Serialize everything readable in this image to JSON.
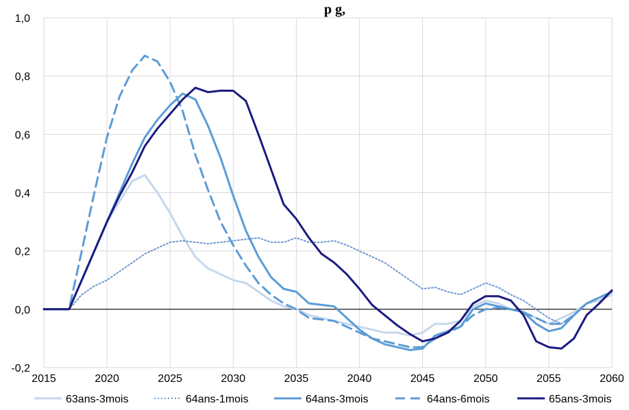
{
  "title_fragment": "p                g,",
  "chart_data": {
    "type": "line",
    "title": "",
    "xlabel": "",
    "ylabel": "",
    "xlim": [
      2015,
      2060
    ],
    "ylim": [
      -0.2,
      1.0
    ],
    "xticks": [
      2015,
      2020,
      2025,
      2030,
      2035,
      2040,
      2045,
      2050,
      2055,
      2060
    ],
    "xtick_labels": [
      "2015",
      "2020",
      "2025",
      "2030",
      "2035",
      "2040",
      "2045",
      "2050",
      "2055",
      "2060"
    ],
    "yticks": [
      -0.2,
      0.0,
      0.2,
      0.4,
      0.6,
      0.8,
      1.0
    ],
    "ytick_labels": [
      "-0,2",
      "0,0",
      "0,2",
      "0,4",
      "0,6",
      "0,8",
      "1,0"
    ],
    "grid": true,
    "legend_position": "bottom",
    "x": [
      2015,
      2016,
      2017,
      2018,
      2019,
      2020,
      2021,
      2022,
      2023,
      2024,
      2025,
      2026,
      2027,
      2028,
      2029,
      2030,
      2031,
      2032,
      2033,
      2034,
      2035,
      2036,
      2037,
      2038,
      2039,
      2040,
      2041,
      2042,
      2043,
      2044,
      2045,
      2046,
      2047,
      2048,
      2049,
      2050,
      2051,
      2052,
      2053,
      2054,
      2055,
      2056,
      2057,
      2058,
      2059,
      2060
    ],
    "series": [
      {
        "name": "63ans-3mois",
        "color": "#c5d7ee",
        "style": "solid",
        "values": [
          0.0,
          0.0,
          0.0,
          0.1,
          0.2,
          0.3,
          0.37,
          0.44,
          0.46,
          0.4,
          0.33,
          0.25,
          0.18,
          0.14,
          0.12,
          0.1,
          0.09,
          0.06,
          0.03,
          0.01,
          0.0,
          -0.02,
          -0.03,
          -0.04,
          -0.05,
          -0.06,
          -0.07,
          -0.08,
          -0.08,
          -0.09,
          -0.08,
          -0.05,
          -0.05,
          -0.04,
          0.01,
          0.03,
          0.02,
          0.0,
          -0.01,
          -0.03,
          -0.05,
          -0.03,
          -0.01,
          0.02,
          0.03,
          0.05
        ]
      },
      {
        "name": "64ans-1mois",
        "color": "#6f96d2",
        "style": "dotted",
        "values": [
          0.0,
          0.0,
          0.0,
          0.05,
          0.08,
          0.1,
          0.13,
          0.16,
          0.19,
          0.21,
          0.23,
          0.235,
          0.23,
          0.225,
          0.23,
          0.235,
          0.24,
          0.245,
          0.23,
          0.23,
          0.245,
          0.23,
          0.23,
          0.235,
          0.22,
          0.2,
          0.18,
          0.16,
          0.13,
          0.1,
          0.07,
          0.075,
          0.06,
          0.05,
          0.07,
          0.09,
          0.075,
          0.05,
          0.03,
          0.0,
          -0.03,
          -0.05,
          -0.02,
          0.02,
          0.04,
          0.06
        ]
      },
      {
        "name": "64ans-3mois",
        "color": "#5b9bd5",
        "style": "solid",
        "values": [
          0.0,
          0.0,
          0.0,
          0.1,
          0.2,
          0.3,
          0.4,
          0.5,
          0.59,
          0.65,
          0.7,
          0.74,
          0.72,
          0.63,
          0.52,
          0.39,
          0.27,
          0.18,
          0.11,
          0.07,
          0.06,
          0.02,
          0.015,
          0.01,
          -0.03,
          -0.07,
          -0.1,
          -0.12,
          -0.13,
          -0.14,
          -0.135,
          -0.09,
          -0.075,
          -0.06,
          0.0,
          0.02,
          0.01,
          0.0,
          -0.01,
          -0.05,
          -0.075,
          -0.065,
          -0.02,
          0.02,
          0.04,
          0.06
        ]
      },
      {
        "name": "64ans-6mois",
        "color": "#5b9bd5",
        "style": "dashed",
        "values": [
          0.0,
          0.0,
          0.0,
          0.2,
          0.4,
          0.59,
          0.73,
          0.82,
          0.87,
          0.85,
          0.78,
          0.68,
          0.53,
          0.41,
          0.3,
          0.22,
          0.15,
          0.09,
          0.05,
          0.02,
          0.0,
          -0.03,
          -0.035,
          -0.04,
          -0.06,
          -0.08,
          -0.1,
          -0.11,
          -0.12,
          -0.13,
          -0.13,
          -0.1,
          -0.08,
          -0.06,
          -0.02,
          0.0,
          0.005,
          0.0,
          -0.01,
          -0.03,
          -0.05,
          -0.05,
          -0.02,
          0.02,
          0.04,
          0.06
        ]
      },
      {
        "name": "65ans-3mois",
        "color": "#1b1a7f",
        "style": "solid",
        "values": [
          0.0,
          0.0,
          0.0,
          0.1,
          0.2,
          0.3,
          0.39,
          0.47,
          0.56,
          0.62,
          0.67,
          0.72,
          0.76,
          0.745,
          0.75,
          0.75,
          0.715,
          0.6,
          0.48,
          0.36,
          0.31,
          0.245,
          0.19,
          0.16,
          0.12,
          0.07,
          0.015,
          -0.02,
          -0.055,
          -0.085,
          -0.11,
          -0.1,
          -0.08,
          -0.04,
          0.02,
          0.045,
          0.045,
          0.03,
          -0.02,
          -0.11,
          -0.13,
          -0.135,
          -0.1,
          -0.02,
          0.02,
          0.065
        ]
      }
    ]
  }
}
